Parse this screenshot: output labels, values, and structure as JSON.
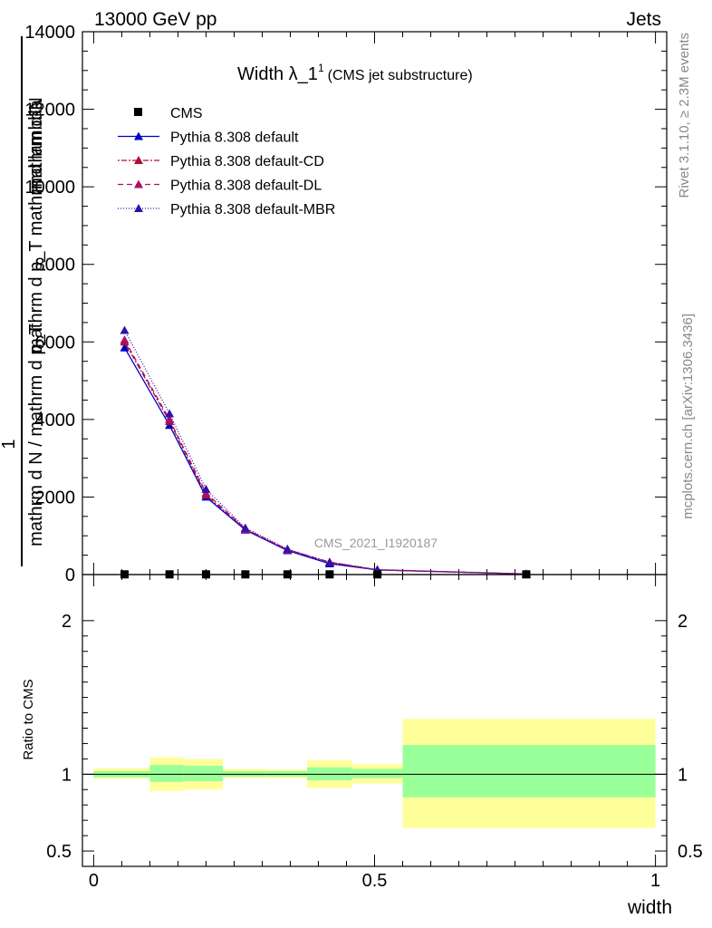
{
  "header": {
    "left": "13000 GeV pp",
    "right": "Jets"
  },
  "side": {
    "rivet": "Rivet 3.1.10, ≥ 2.3M events",
    "mcplots": "mcplots.cern.ch [arXiv:1306.3436]"
  },
  "watermark": "CMS_2021_I1920187",
  "chart_data": [
    {
      "type": "line",
      "title": "Width λ_1",
      "title_sup": "1",
      "subtitle": "(CMS jet substructure)",
      "ylabel_top": "mathrm d²N",
      "ylabel_mid": "mathrm d p_T mathrmd lambda",
      "ylabel_frac": "1",
      "ylabel_den": "mathrm d N / mathrm d p_T",
      "xlim": [
        -0.02,
        1.02
      ],
      "ylim": [
        0,
        14000
      ],
      "yticks": [
        0,
        2000,
        4000,
        6000,
        8000,
        10000,
        12000,
        14000
      ],
      "ytick_labels": [
        "0",
        "2000",
        "4000",
        "6000",
        "8000",
        "10000",
        "12000",
        "14000"
      ],
      "legend": [
        "CMS",
        "Pythia 8.308 default",
        "Pythia 8.308 default-CD",
        "Pythia 8.308 default-DL",
        "Pythia 8.308 default-MBR"
      ],
      "legend_position": "top-left",
      "data_points": {
        "name": "CMS",
        "x": [
          0.055,
          0.135,
          0.2,
          0.27,
          0.345,
          0.42,
          0.505,
          0.77
        ],
        "y": [
          5,
          5,
          5,
          5,
          5,
          5,
          5,
          5
        ]
      },
      "series": [
        {
          "name": "Pythia 8.308 default",
          "color": "#0000cc",
          "dash": "solid",
          "x": [
            0.055,
            0.135,
            0.2,
            0.27,
            0.345,
            0.42,
            0.505,
            0.77
          ],
          "y": [
            5850,
            3850,
            2000,
            1150,
            620,
            280,
            120,
            15
          ]
        },
        {
          "name": "Pythia 8.308 default-CD",
          "color": "#aa1133",
          "dash": "2,2,6,2",
          "x": [
            0.055,
            0.135,
            0.2,
            0.27,
            0.345,
            0.42,
            0.505,
            0.77
          ],
          "y": [
            6000,
            3950,
            2050,
            1170,
            640,
            320,
            120,
            15
          ]
        },
        {
          "name": "Pythia 8.308 default-DL",
          "color": "#aa1166",
          "dash": "6,4",
          "x": [
            0.055,
            0.135,
            0.2,
            0.27,
            0.345,
            0.42,
            0.505,
            0.77
          ],
          "y": [
            6050,
            4000,
            2100,
            1180,
            640,
            320,
            120,
            15
          ]
        },
        {
          "name": "Pythia 8.308 default-MBR",
          "color": "#3311aa",
          "dash": "1,2",
          "x": [
            0.055,
            0.135,
            0.2,
            0.27,
            0.345,
            0.42,
            0.505,
            0.77
          ],
          "y": [
            6300,
            4150,
            2200,
            1200,
            660,
            310,
            130,
            15
          ]
        }
      ]
    },
    {
      "type": "area",
      "ylabel": "Ratio to CMS",
      "xlabel": "width",
      "xlim": [
        -0.02,
        1.02
      ],
      "ylim": [
        0.4,
        2.3
      ],
      "xticks": [
        0,
        0.5,
        1
      ],
      "xtick_labels": [
        "0",
        "0.5",
        "1"
      ],
      "yticks": [
        0.5,
        1,
        2
      ],
      "ytick_labels": [
        "0.5",
        "1",
        "2"
      ],
      "bands": [
        {
          "x0": 0.0,
          "x1": 0.1,
          "inner": [
            0.98,
            1.02
          ],
          "outer": [
            0.97,
            1.04
          ]
        },
        {
          "x0": 0.1,
          "x1": 0.16,
          "inner": [
            0.95,
            1.06
          ],
          "outer": [
            0.89,
            1.11
          ]
        },
        {
          "x0": 0.16,
          "x1": 0.23,
          "inner": [
            0.955,
            1.055
          ],
          "outer": [
            0.9,
            1.1
          ]
        },
        {
          "x0": 0.23,
          "x1": 0.31,
          "inner": [
            0.985,
            1.02
          ],
          "outer": [
            0.975,
            1.035
          ]
        },
        {
          "x0": 0.31,
          "x1": 0.38,
          "inner": [
            0.985,
            1.02
          ],
          "outer": [
            0.975,
            1.03
          ]
        },
        {
          "x0": 0.38,
          "x1": 0.46,
          "inner": [
            0.96,
            1.045
          ],
          "outer": [
            0.91,
            1.09
          ]
        },
        {
          "x0": 0.46,
          "x1": 0.55,
          "inner": [
            0.975,
            1.035
          ],
          "outer": [
            0.94,
            1.065
          ]
        },
        {
          "x0": 0.55,
          "x1": 1.0,
          "inner": [
            0.85,
            1.19
          ],
          "outer": [
            0.65,
            1.36
          ]
        }
      ]
    }
  ]
}
